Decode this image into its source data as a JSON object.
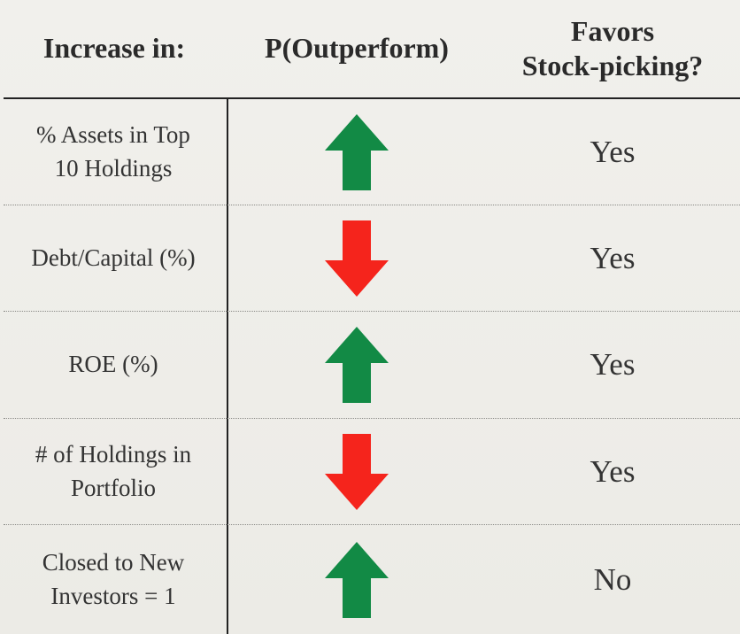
{
  "header": {
    "col1": "Increase in:",
    "col2": "P(Outperform)",
    "col3_line1": "Favors",
    "col3_line2": "Stock-picking?"
  },
  "colors": {
    "up": "#128a45",
    "down": "#f5241c"
  },
  "rows": [
    {
      "label_line1": "% Assets in Top",
      "label_line2": "10 Holdings",
      "direction": "up",
      "direction_icon": "up-arrow-icon",
      "favors": "Yes"
    },
    {
      "label_line1": "Debt/Capital (%)",
      "label_line2": "",
      "direction": "down",
      "direction_icon": "down-arrow-icon",
      "favors": "Yes"
    },
    {
      "label_line1": "ROE (%)",
      "label_line2": "",
      "direction": "up",
      "direction_icon": "up-arrow-icon",
      "favors": "Yes"
    },
    {
      "label_line1": "# of Holdings in",
      "label_line2": "Portfolio",
      "direction": "down",
      "direction_icon": "down-arrow-icon",
      "favors": "Yes"
    },
    {
      "label_line1": "Closed to New",
      "label_line2": "Investors = 1",
      "direction": "up",
      "direction_icon": "up-arrow-icon",
      "favors": "No"
    }
  ]
}
